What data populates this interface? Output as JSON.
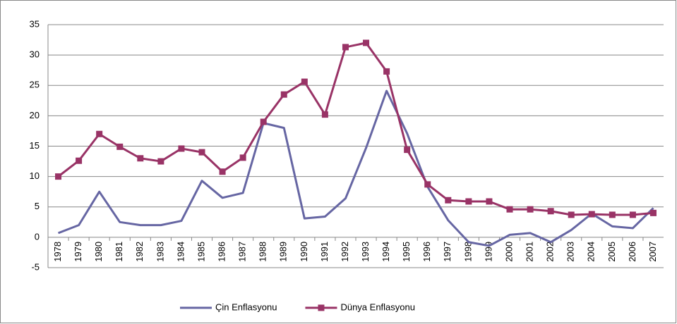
{
  "chart_data": {
    "type": "line",
    "categories": [
      "1978",
      "1979",
      "1980",
      "1981",
      "1982",
      "1983",
      "1984",
      "1985",
      "1986",
      "1987",
      "1988",
      "1989",
      "1990",
      "1991",
      "1992",
      "1993",
      "1994",
      "1995",
      "1996",
      "1997",
      "1998",
      "1999",
      "2000",
      "2001",
      "2002",
      "2003",
      "2004",
      "2005",
      "2006",
      "2007"
    ],
    "series": [
      {
        "name": "Çin Enflasyonu",
        "color": "#6666a3",
        "marker": "none",
        "values": [
          0.7,
          2.0,
          7.5,
          2.5,
          2.0,
          2.0,
          2.7,
          9.3,
          6.5,
          7.3,
          18.8,
          18.0,
          3.1,
          3.4,
          6.4,
          14.7,
          24.1,
          17.1,
          8.3,
          2.8,
          -0.8,
          -1.4,
          0.4,
          0.7,
          -0.8,
          1.2,
          3.9,
          1.8,
          1.5,
          4.8
        ]
      },
      {
        "name": "Dünya Enflasyonu",
        "color": "#993366",
        "marker": "square",
        "values": [
          10.0,
          12.6,
          17.0,
          14.9,
          13.0,
          12.5,
          14.6,
          14.0,
          10.8,
          13.1,
          19.0,
          23.5,
          25.6,
          20.2,
          31.3,
          32.0,
          27.3,
          14.4,
          8.7,
          6.1,
          5.9,
          5.9,
          4.6,
          4.6,
          4.3,
          3.7,
          3.8,
          3.7,
          3.7,
          4.0
        ]
      }
    ],
    "ylim": [
      -5,
      35
    ],
    "yticks": [
      -5,
      0,
      5,
      10,
      15,
      20,
      25,
      30,
      35
    ],
    "grid": true,
    "legend": "bottom"
  }
}
